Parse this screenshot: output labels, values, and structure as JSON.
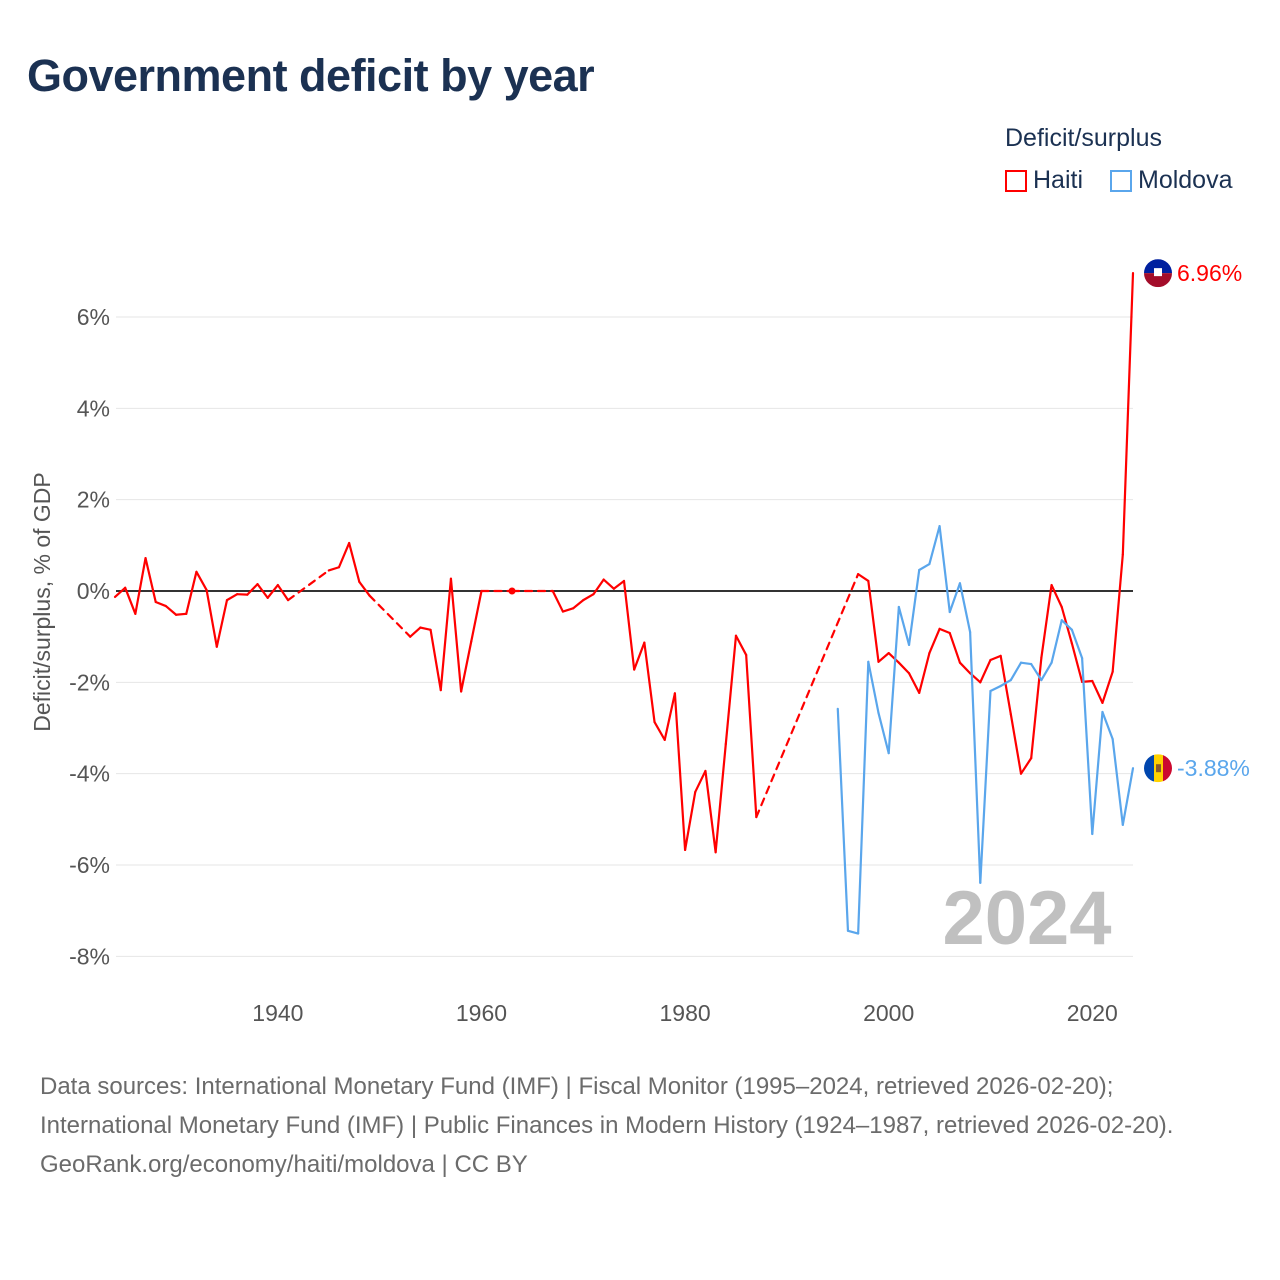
{
  "title": "Government deficit by year",
  "legend": {
    "title": "Deficit/surplus",
    "items": [
      {
        "name": "Haiti",
        "color": "#ff0000"
      },
      {
        "name": "Moldova",
        "color": "#5aa6ec"
      }
    ]
  },
  "watermark_year": "2024",
  "footer": {
    "sources": "Data sources: International Monetary Fund (IMF) | Fiscal Monitor (1995–2024, retrieved 2026-02-20); International Monetary Fund (IMF) | Public Finances in Modern History (1924–1987, retrieved 2026-02-20).",
    "credit": "GeoRank.org/economy/haiti/moldova | CC BY"
  },
  "chart_data": {
    "type": "line",
    "title": "Government deficit by year",
    "xlabel": "",
    "ylabel": "Deficit/surplus, % of GDP",
    "xlim": [
      1924,
      2024
    ],
    "ylim": [
      -8.5,
      7.2
    ],
    "x_ticks": [
      1940,
      1960,
      1980,
      2000,
      2020
    ],
    "y_ticks": [
      -8,
      -6,
      -4,
      -2,
      0,
      2,
      4,
      6
    ],
    "y_tick_labels": [
      "-8%",
      "-6%",
      "-4%",
      "-2%",
      "0%",
      "2%",
      "4%",
      "6%"
    ],
    "grid": true,
    "legend_position": "top-right",
    "series": [
      {
        "name": "Haiti",
        "color": "#ff0000",
        "end_label": "6.96%",
        "points": [
          [
            1924,
            -0.13
          ],
          [
            1925,
            0.07
          ],
          [
            1926,
            -0.5
          ],
          [
            1927,
            0.72
          ],
          [
            1928,
            -0.24
          ],
          [
            1929,
            -0.33
          ],
          [
            1930,
            -0.52
          ],
          [
            1931,
            -0.5
          ],
          [
            1932,
            0.42
          ],
          [
            1933,
            0.02
          ],
          [
            1934,
            -1.22
          ],
          [
            1935,
            -0.2
          ],
          [
            1936,
            -0.07
          ],
          [
            1937,
            -0.08
          ],
          [
            1938,
            0.15
          ],
          [
            1939,
            -0.15
          ],
          [
            1940,
            0.13
          ],
          [
            1941,
            -0.2
          ],
          [
            1945,
            0.45
          ],
          [
            1946,
            0.52
          ],
          [
            1947,
            1.05
          ],
          [
            1948,
            0.2
          ],
          [
            1949,
            -0.1
          ],
          [
            1953,
            -1.0
          ],
          [
            1954,
            -0.8
          ],
          [
            1955,
            -0.85
          ],
          [
            1956,
            -2.17
          ],
          [
            1957,
            0.27
          ],
          [
            1958,
            -2.2
          ],
          [
            1959,
            -1.1
          ],
          [
            1960,
            0.0
          ],
          [
            1963,
            0.0
          ],
          [
            1967,
            0.0
          ],
          [
            1968,
            -0.45
          ],
          [
            1969,
            -0.38
          ],
          [
            1970,
            -0.2
          ],
          [
            1971,
            -0.07
          ],
          [
            1972,
            0.25
          ],
          [
            1973,
            0.05
          ],
          [
            1974,
            0.22
          ],
          [
            1975,
            -1.72
          ],
          [
            1976,
            -1.13
          ],
          [
            1977,
            -2.87
          ],
          [
            1978,
            -3.26
          ],
          [
            1979,
            -2.24
          ],
          [
            1980,
            -5.67
          ],
          [
            1981,
            -4.4
          ],
          [
            1982,
            -3.94
          ],
          [
            1983,
            -5.72
          ],
          [
            1984,
            -3.35
          ],
          [
            1985,
            -0.98
          ],
          [
            1986,
            -1.4
          ],
          [
            1987,
            -4.95
          ],
          [
            1997,
            0.37
          ],
          [
            1998,
            0.22
          ],
          [
            1999,
            -1.55
          ],
          [
            2000,
            -1.36
          ],
          [
            2001,
            -1.57
          ],
          [
            2002,
            -1.8
          ],
          [
            2003,
            -2.23
          ],
          [
            2004,
            -1.36
          ],
          [
            2005,
            -0.83
          ],
          [
            2006,
            -0.92
          ],
          [
            2007,
            -1.57
          ],
          [
            2008,
            -1.8
          ],
          [
            2009,
            -2.0
          ],
          [
            2010,
            -1.51
          ],
          [
            2011,
            -1.42
          ],
          [
            2012,
            -2.7
          ],
          [
            2013,
            -4.0
          ],
          [
            2014,
            -3.66
          ],
          [
            2015,
            -1.46
          ],
          [
            2016,
            0.13
          ],
          [
            2017,
            -0.35
          ],
          [
            2018,
            -1.15
          ],
          [
            2019,
            -1.99
          ],
          [
            2020,
            -1.97
          ],
          [
            2021,
            -2.45
          ],
          [
            2022,
            -1.77
          ],
          [
            2023,
            0.8
          ],
          [
            2024,
            6.96
          ]
        ]
      },
      {
        "name": "Moldova",
        "color": "#5aa6ec",
        "end_label": "-3.88%",
        "points": [
          [
            1995,
            -2.58
          ],
          [
            1996,
            -7.44
          ],
          [
            1997,
            -7.5
          ],
          [
            1998,
            -1.55
          ],
          [
            1999,
            -2.67
          ],
          [
            2000,
            -3.55
          ],
          [
            2001,
            -0.35
          ],
          [
            2002,
            -1.18
          ],
          [
            2003,
            0.46
          ],
          [
            2004,
            0.59
          ],
          [
            2005,
            1.42
          ],
          [
            2006,
            -0.46
          ],
          [
            2007,
            0.17
          ],
          [
            2008,
            -0.9
          ],
          [
            2009,
            -6.39
          ],
          [
            2010,
            -2.19
          ],
          [
            2011,
            -2.08
          ],
          [
            2012,
            -1.95
          ],
          [
            2013,
            -1.57
          ],
          [
            2014,
            -1.6
          ],
          [
            2015,
            -1.95
          ],
          [
            2016,
            -1.57
          ],
          [
            2017,
            -0.64
          ],
          [
            2018,
            -0.85
          ],
          [
            2019,
            -1.47
          ],
          [
            2020,
            -5.32
          ],
          [
            2021,
            -2.65
          ],
          [
            2022,
            -3.24
          ],
          [
            2023,
            -5.12
          ],
          [
            2024,
            -3.88
          ]
        ]
      }
    ]
  }
}
